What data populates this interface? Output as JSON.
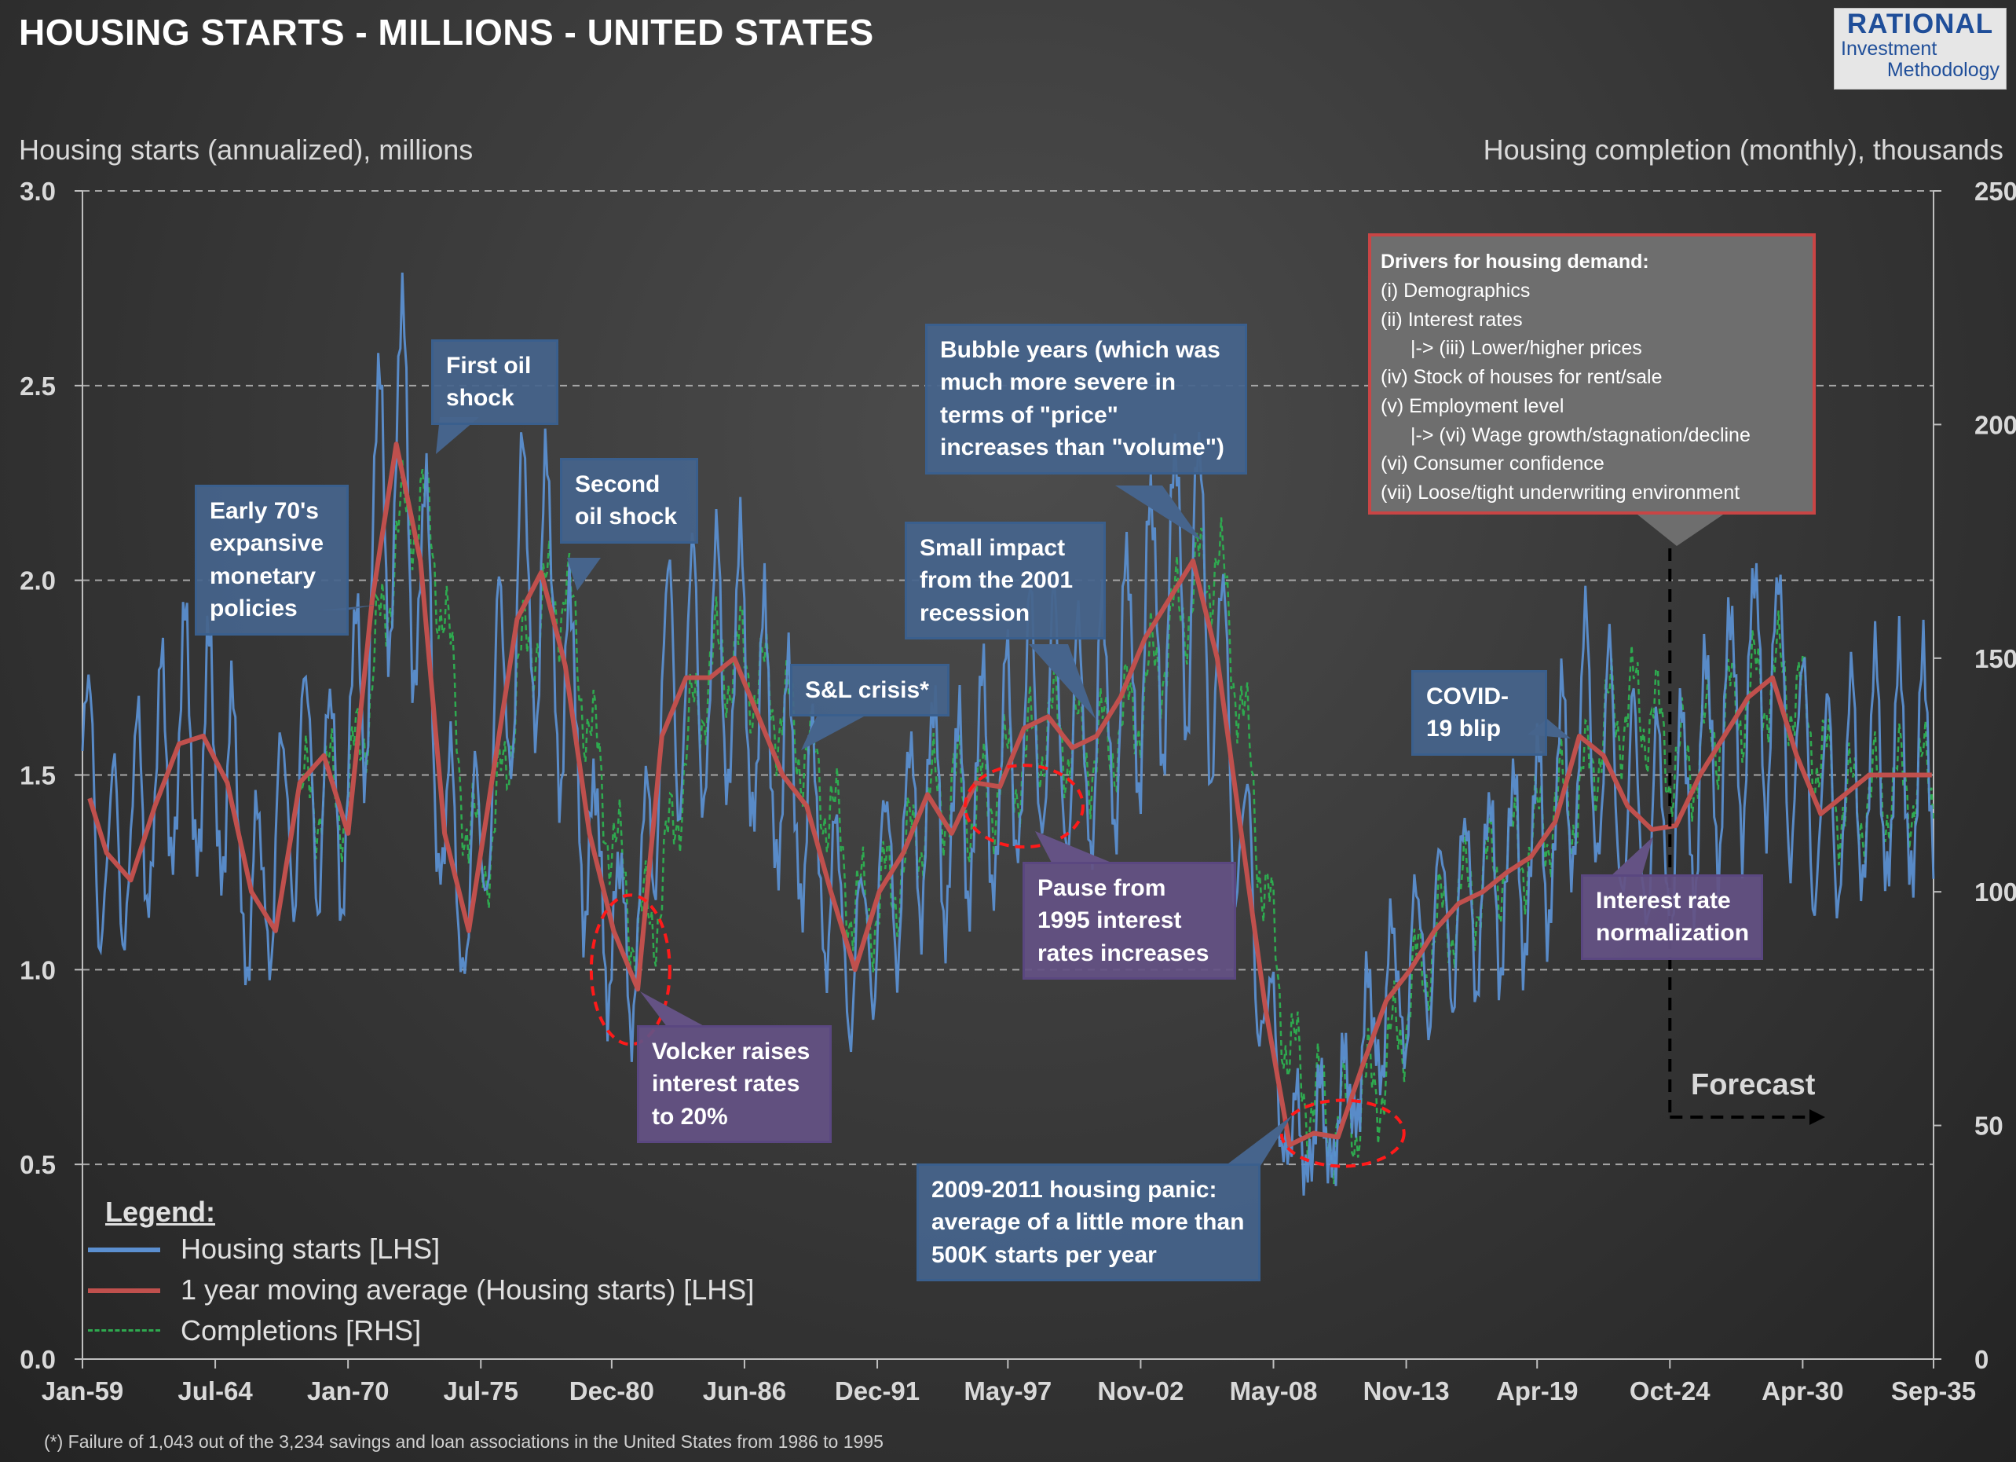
{
  "title": "HOUSING STARTS - MILLIONS - UNITED STATES",
  "logo": {
    "line1": "RATIONAL",
    "line2": "Investment",
    "line3": "Methodology"
  },
  "footnote": "(*) Failure of 1,043 out of the 3,234 savings and loan associations in the United States from 1986 to 1995",
  "forecast_label": "Forecast",
  "legend": {
    "title": "Legend:",
    "items": [
      {
        "label": "Housing starts [LHS]",
        "color": "#5b8fd0",
        "style": "solid"
      },
      {
        "label": "1 year moving average (Housing starts) [LHS]",
        "color": "#c0504d",
        "style": "solid"
      },
      {
        "label": "Completions [RHS]",
        "color": "#2eaa4f",
        "style": "dashed"
      }
    ]
  },
  "annotations": {
    "early70s": "Early 70's expansive monetary policies",
    "oil1": "First oil shock",
    "oil2": "Second oil shock",
    "volcker": "Volcker raises interest rates to 20%",
    "sl": "S&L crisis*",
    "pause": "Pause from 1995 interest rates increases",
    "small2001": "Small impact from the 2001 recession",
    "bubble": "Bubble years (which was much more severe in terms of \"price\" increases than \"volume\")",
    "panic": "2009-2011 housing panic: average of a little more than 500K starts per year",
    "covid": "COVID-19 blip",
    "rates": "Interest rate normalization"
  },
  "drivers": {
    "heading": "Drivers for housing demand:",
    "lines": [
      "(i) Demographics",
      "(ii) Interest rates",
      "|-> (iii) Lower/higher prices",
      "(iv) Stock of houses for rent/sale",
      "(v) Employment level",
      "|-> (vi) Wage growth/stagnation/decline",
      "(vi) Consumer confidence",
      "(vii) Loose/tight underwriting environment"
    ]
  },
  "chart_data": {
    "type": "line",
    "title": "HOUSING STARTS - MILLIONS - UNITED STATES",
    "ylabel": "Housing starts (annualized), millions",
    "y2label": "Housing completion (monthly), thousands",
    "ylim": [
      0,
      3.0
    ],
    "y2lim": [
      0,
      250
    ],
    "yticks": [
      "0.0",
      "0.5",
      "1.0",
      "1.5",
      "2.0",
      "2.5",
      "3.0"
    ],
    "y2ticks": [
      "0",
      "50",
      "100",
      "150",
      "200",
      "250"
    ],
    "xlim": [
      1959.0,
      2035.67
    ],
    "xtick_labels": [
      "Jan-59",
      "Jul-64",
      "Jan-70",
      "Jul-75",
      "Dec-80",
      "Jun-86",
      "Dec-91",
      "May-97",
      "Nov-02",
      "May-08",
      "Nov-13",
      "Apr-19",
      "Oct-24",
      "Apr-30",
      "Sep-35"
    ],
    "xtick_values": [
      1959.0,
      1964.5,
      1970.0,
      1975.5,
      1980.92,
      1986.42,
      1991.92,
      1997.33,
      2002.83,
      2008.33,
      2013.83,
      2019.25,
      2024.75,
      2030.25,
      2035.67
    ],
    "grid": "horizontal dashed",
    "legend_position": "bottom-left",
    "forecast_start": 2024.75,
    "series": [
      {
        "name": "Housing starts [LHS]",
        "axis": "left",
        "x": [
          1959.0,
          1960.0,
          1961.0,
          1962.0,
          1963.0,
          1964.0,
          1965.0,
          1966.0,
          1967.0,
          1968.0,
          1969.0,
          1970.0,
          1971.0,
          1972.0,
          1973.0,
          1974.0,
          1975.0,
          1976.0,
          1977.0,
          1978.0,
          1979.0,
          1980.0,
          1981.0,
          1982.0,
          1983.0,
          1984.0,
          1985.0,
          1986.0,
          1987.0,
          1988.0,
          1989.0,
          1990.0,
          1991.0,
          1992.0,
          1993.0,
          1994.0,
          1995.0,
          1996.0,
          1997.0,
          1998.0,
          1999.0,
          2000.0,
          2001.0,
          2002.0,
          2003.0,
          2004.0,
          2005.0,
          2006.0,
          2007.0,
          2008.0,
          2009.0,
          2010.0,
          2011.0,
          2012.0,
          2013.0,
          2014.0,
          2015.0,
          2016.0,
          2017.0,
          2018.0,
          2019.0,
          2020.0,
          2021.0,
          2022.0,
          2023.0,
          2024.0,
          2025.0,
          2026.0,
          2027.0,
          2028.0,
          2029.0,
          2030.0,
          2031.0,
          2032.0,
          2033.0,
          2034.0,
          2035.0
        ],
        "values": [
          1.55,
          1.25,
          1.35,
          1.45,
          1.6,
          1.55,
          1.5,
          1.15,
          1.3,
          1.5,
          1.45,
          1.45,
          2.05,
          2.35,
          2.05,
          1.35,
          1.15,
          1.55,
          1.95,
          2.0,
          1.75,
          1.3,
          1.1,
          1.05,
          1.7,
          1.75,
          1.75,
          1.8,
          1.65,
          1.5,
          1.4,
          1.2,
          1.0,
          1.2,
          1.3,
          1.45,
          1.35,
          1.48,
          1.47,
          1.62,
          1.65,
          1.57,
          1.6,
          1.7,
          1.85,
          1.95,
          2.05,
          1.8,
          1.35,
          0.9,
          0.55,
          0.58,
          0.6,
          0.78,
          0.92,
          1.0,
          1.1,
          1.17,
          1.2,
          1.25,
          1.29,
          1.38,
          1.6,
          1.55,
          1.42,
          1.36,
          1.37,
          1.5,
          1.6,
          1.7,
          1.75,
          1.55,
          1.4,
          1.45,
          1.5,
          1.5,
          1.5
        ]
      },
      {
        "name": "1 year moving average (Housing starts) [LHS]",
        "axis": "left",
        "x": [
          1959.0,
          1960.0,
          1961.0,
          1962.0,
          1963.0,
          1964.0,
          1965.0,
          1966.0,
          1967.0,
          1968.0,
          1969.0,
          1970.0,
          1971.0,
          1972.0,
          1973.0,
          1974.0,
          1975.0,
          1976.0,
          1977.0,
          1978.0,
          1979.0,
          1980.0,
          1981.0,
          1982.0,
          1983.0,
          1984.0,
          1985.0,
          1986.0,
          1987.0,
          1988.0,
          1989.0,
          1990.0,
          1991.0,
          1992.0,
          1993.0,
          1994.0,
          1995.0,
          1996.0,
          1997.0,
          1998.0,
          1999.0,
          2000.0,
          2001.0,
          2002.0,
          2003.0,
          2004.0,
          2005.0,
          2006.0,
          2007.0,
          2008.0,
          2009.0,
          2010.0,
          2011.0,
          2012.0,
          2013.0,
          2014.0,
          2015.0,
          2016.0,
          2017.0,
          2018.0,
          2019.0,
          2020.0,
          2021.0,
          2022.0,
          2023.0,
          2024.0,
          2025.0,
          2026.0,
          2027.0,
          2028.0,
          2029.0,
          2030.0,
          2031.0,
          2032.0,
          2033.0,
          2034.0,
          2035.0
        ],
        "values": [
          1.5,
          1.3,
          1.23,
          1.42,
          1.58,
          1.6,
          1.48,
          1.2,
          1.1,
          1.48,
          1.55,
          1.35,
          1.95,
          2.35,
          2.05,
          1.35,
          1.1,
          1.5,
          1.9,
          2.02,
          1.78,
          1.35,
          1.1,
          0.95,
          1.6,
          1.75,
          1.75,
          1.8,
          1.65,
          1.5,
          1.42,
          1.2,
          1.0,
          1.2,
          1.3,
          1.45,
          1.35,
          1.48,
          1.47,
          1.62,
          1.65,
          1.57,
          1.6,
          1.7,
          1.85,
          1.95,
          2.05,
          1.8,
          1.35,
          0.9,
          0.55,
          0.58,
          0.57,
          0.75,
          0.92,
          1.0,
          1.1,
          1.17,
          1.2,
          1.25,
          1.29,
          1.38,
          1.6,
          1.55,
          1.42,
          1.36,
          1.37,
          1.5,
          1.6,
          1.7,
          1.75,
          1.55,
          1.4,
          1.45,
          1.5,
          1.5,
          1.5
        ]
      },
      {
        "name": "Completions [RHS]",
        "axis": "right",
        "x": [
          1968.0,
          1969.0,
          1970.0,
          1971.0,
          1972.0,
          1973.0,
          1974.0,
          1975.0,
          1976.0,
          1977.0,
          1978.0,
          1979.0,
          1980.0,
          1981.0,
          1982.0,
          1983.0,
          1984.0,
          1985.0,
          1986.0,
          1987.0,
          1988.0,
          1989.0,
          1990.0,
          1991.0,
          1992.0,
          1993.0,
          1994.0,
          1995.0,
          1996.0,
          1997.0,
          1998.0,
          1999.0,
          2000.0,
          2001.0,
          2002.0,
          2003.0,
          2004.0,
          2005.0,
          2006.0,
          2007.0,
          2008.0,
          2009.0,
          2010.0,
          2011.0,
          2012.0,
          2013.0,
          2014.0,
          2015.0,
          2016.0,
          2017.0,
          2018.0,
          2019.0,
          2020.0,
          2021.0,
          2022.0,
          2023.0,
          2024.0,
          2025.0,
          2026.0,
          2027.0,
          2028.0,
          2029.0,
          2030.0,
          2031.0,
          2032.0,
          2033.0,
          2034.0,
          2035.0
        ],
        "values": [
          118,
          122,
          120,
          145,
          175,
          185,
          160,
          110,
          110,
          145,
          160,
          165,
          135,
          110,
          90,
          100,
          130,
          148,
          150,
          145,
          138,
          130,
          118,
          95,
          98,
          105,
          118,
          122,
          118,
          124,
          128,
          136,
          132,
          130,
          135,
          142,
          155,
          165,
          172,
          140,
          100,
          65,
          55,
          50,
          55,
          62,
          78,
          90,
          98,
          102,
          108,
          110,
          118,
          120,
          135,
          140,
          138,
          126,
          130,
          138,
          142,
          146,
          143,
          128,
          118,
          120,
          122,
          123
        ]
      }
    ]
  }
}
